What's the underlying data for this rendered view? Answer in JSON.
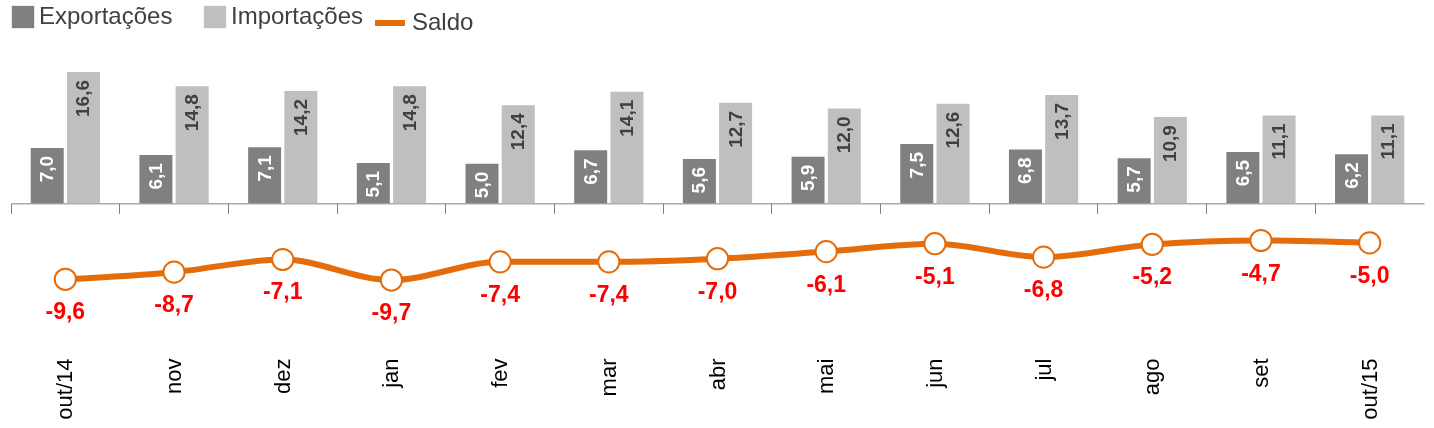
{
  "chart_data": {
    "type": "bar",
    "categories": [
      "out/14",
      "nov",
      "dez",
      "jan",
      "fev",
      "mar",
      "abr",
      "mai",
      "jun",
      "jul",
      "ago",
      "set",
      "out/15"
    ],
    "series": [
      {
        "name": "Exportações",
        "color": "#808080",
        "values": [
          7.0,
          6.1,
          7.1,
          5.1,
          5.0,
          6.7,
          5.6,
          5.9,
          7.5,
          6.8,
          5.7,
          6.5,
          6.2
        ],
        "value_labels": [
          "7,0",
          "6,1",
          "7,1",
          "5,1",
          "5,0",
          "6,7",
          "5,6",
          "5,9",
          "7,5",
          "6,8",
          "5,7",
          "6,5",
          "6,2"
        ]
      },
      {
        "name": "Importações",
        "color": "#bfbfbf",
        "values": [
          16.6,
          14.8,
          14.2,
          14.8,
          12.4,
          14.1,
          12.7,
          12.0,
          12.6,
          13.7,
          10.9,
          11.1,
          11.1
        ],
        "value_labels": [
          "16,6",
          "14,8",
          "14,2",
          "14,8",
          "12,4",
          "14,1",
          "12,7",
          "12,0",
          "12,6",
          "13,7",
          "10,9",
          "11,1",
          "11,1"
        ]
      },
      {
        "name": "Saldo",
        "type": "line",
        "color": "#e46c0a",
        "marker": "circle",
        "values": [
          -9.6,
          -8.7,
          -7.1,
          -9.7,
          -7.4,
          -7.4,
          -7.0,
          -6.1,
          -5.1,
          -6.8,
          -5.2,
          -4.7,
          -5.0
        ],
        "value_labels": [
          "-9,6",
          "-8,7",
          "-7,1",
          "-9,7",
          "-7,4",
          "-7,4",
          "-7,0",
          "-6,1",
          "-5,1",
          "-6,8",
          "-5,2",
          "-4,7",
          "-5,0"
        ]
      }
    ],
    "tick_labels": "x",
    "legend": "top"
  }
}
